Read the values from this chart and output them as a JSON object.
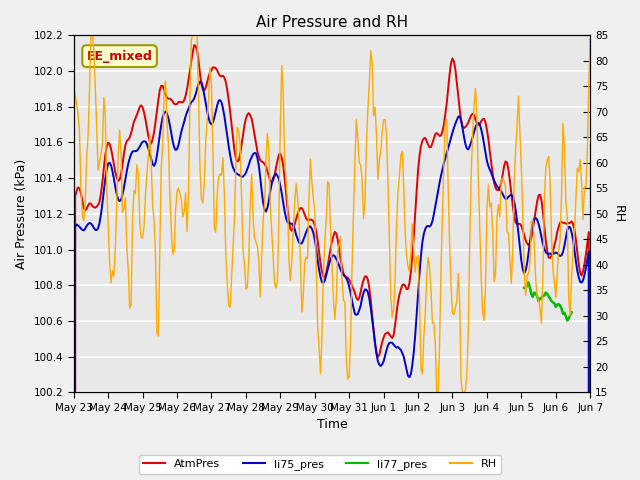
{
  "title": "Air Pressure and RH",
  "ylabel_left": "Air Pressure (kPa)",
  "ylabel_right": "RH",
  "xlabel": "Time",
  "annotation": "EE_mixed",
  "ylim_left": [
    100.2,
    102.2
  ],
  "ylim_right": [
    15,
    85
  ],
  "yticks_left": [
    100.2,
    100.4,
    100.6,
    100.8,
    101.0,
    101.2,
    101.4,
    101.6,
    101.8,
    102.0,
    102.2
  ],
  "yticks_right": [
    15,
    20,
    25,
    30,
    35,
    40,
    45,
    50,
    55,
    60,
    65,
    70,
    75,
    80,
    85
  ],
  "colors": {
    "AtmPres": "#dd0000",
    "li75_pres": "#0000cc",
    "li77_pres": "#00bb00",
    "RH": "#ffaa00"
  },
  "plot_bg": "#e8e8e8",
  "fig_bg": "#f0f0f0",
  "grid_color": "#ffffff",
  "xticklabels": [
    "May 23",
    "May 24",
    "May 25",
    "May 26",
    "May 27",
    "May 28",
    "May 29",
    "May 30",
    "May 31",
    "Jun 1",
    "Jun 2",
    "Jun 3",
    "Jun 4",
    "Jun 5",
    "Jun 6",
    "Jun 7"
  ],
  "annotation_facecolor": "#ffffcc",
  "annotation_edgecolor": "#999900",
  "annotation_textcolor": "#cc0000"
}
